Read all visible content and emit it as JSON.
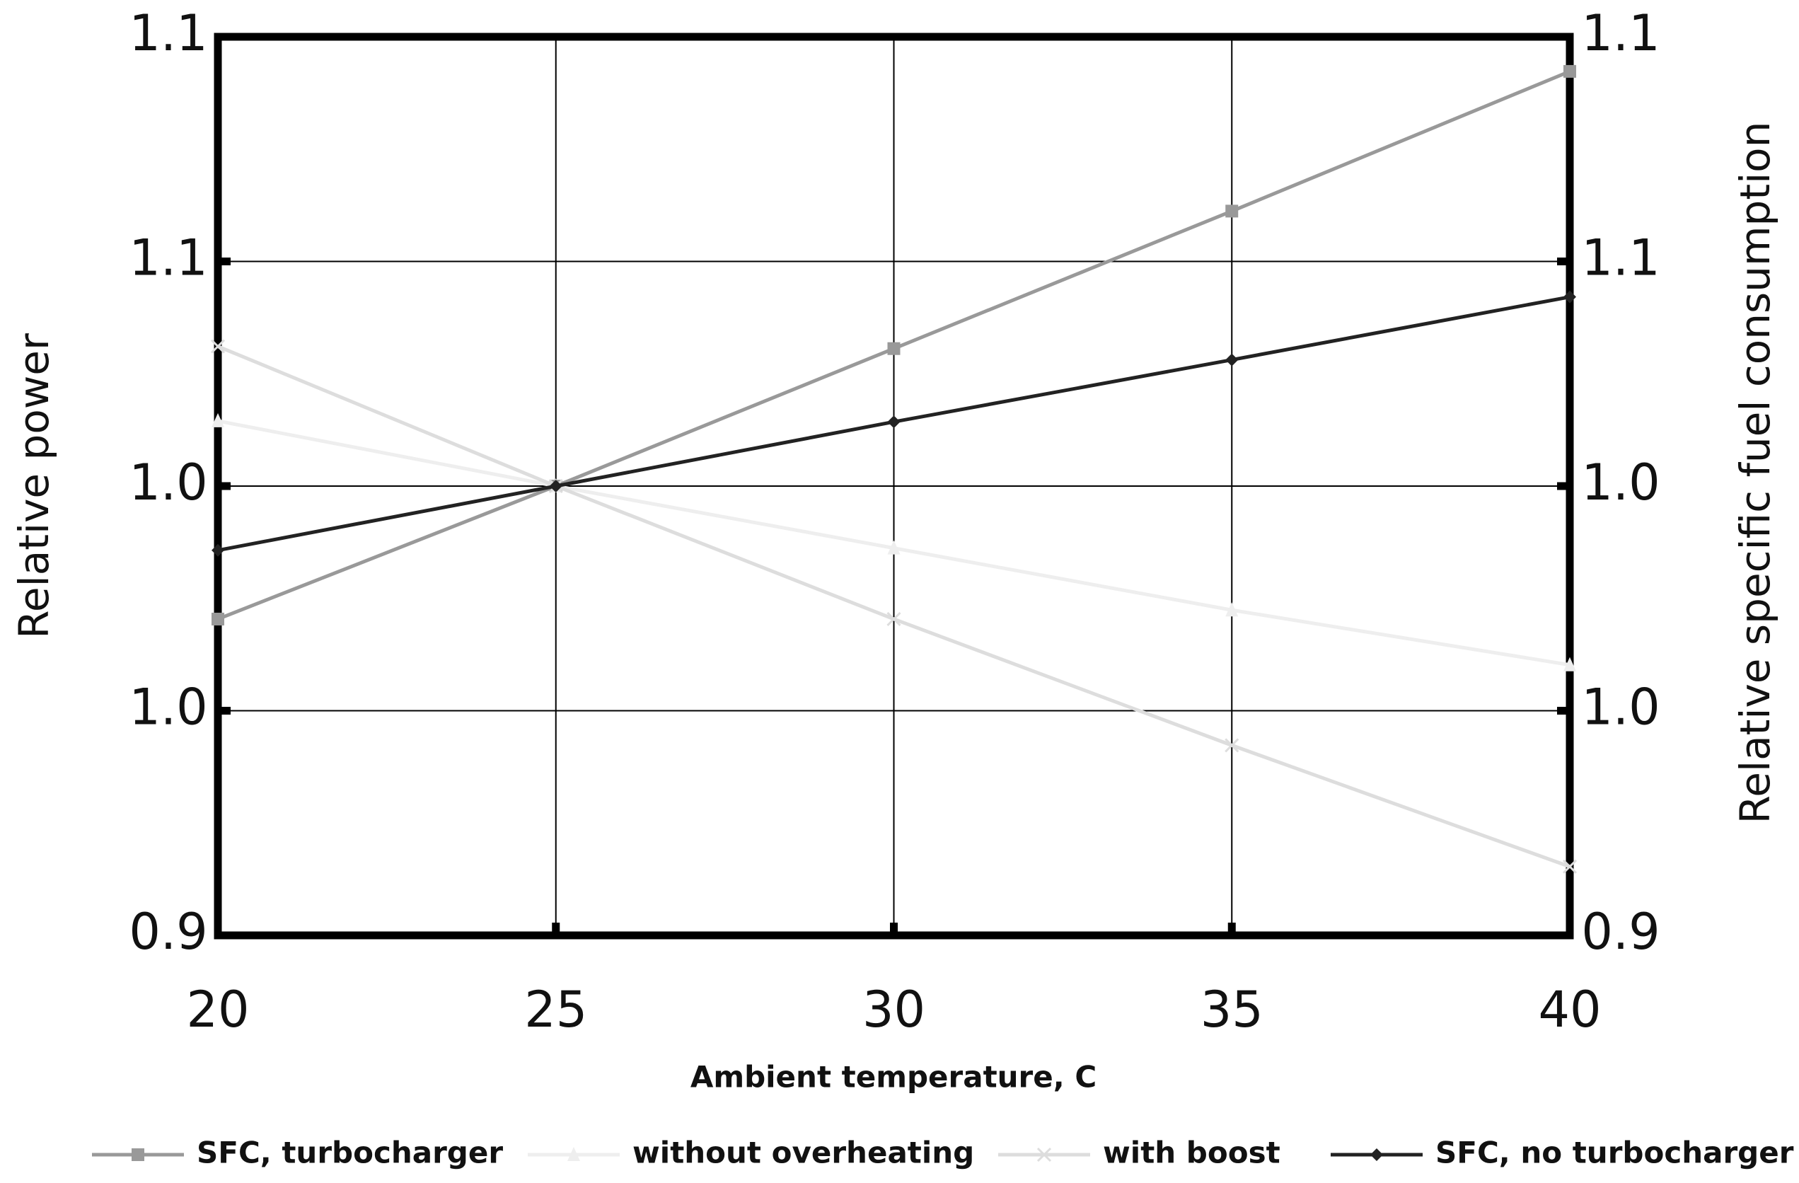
{
  "chart_data": {
    "type": "line",
    "x_label": "Ambient temperature, C",
    "y_label": "Relative power",
    "y2_label": "Relative specific fuel consumption",
    "x": [
      20,
      25,
      30,
      35,
      40
    ],
    "xlim": [
      20,
      40
    ],
    "xticks": [
      20,
      25,
      30,
      35,
      40
    ],
    "ylim": [
      0.9,
      1.1
    ],
    "yticks": [
      0.9,
      {
        "value": 0.95,
        "label": "1.0"
      },
      {
        "value": 1.0,
        "label": "1.0"
      },
      {
        "value": 1.05,
        "label": "1.1"
      },
      1.1
    ],
    "y2lim": [
      0.9,
      1.1
    ],
    "y2ticks": [
      0.9,
      {
        "value": 0.95,
        "label": "1.0"
      },
      {
        "value": 1.0,
        "label": "1.0"
      },
      {
        "value": 1.05,
        "label": "1.1"
      },
      1.1
    ],
    "grid": true,
    "legend": "bottom",
    "series": [
      {
        "name": "SFC, turbocharger",
        "color": "#999999",
        "marker": "square",
        "axis": "y2",
        "values": [
          0.9704,
          1.0,
          1.0306,
          1.0612,
          1.0923
        ]
      },
      {
        "name": "without overheating",
        "color": "#eeeeee",
        "marker": "triangle",
        "values": [
          1.0145,
          1.0,
          0.9862,
          0.9724,
          0.9602
        ]
      },
      {
        "name": "with boost",
        "color": "#dddddd",
        "marker": "cross",
        "values": [
          1.0311,
          1.0,
          0.9704,
          0.9423,
          0.9153
        ]
      },
      {
        "name": "SFC, no turbocharger",
        "color": "#222222",
        "marker": "diamond",
        "axis": "y2",
        "values": [
          0.9857,
          1.0,
          1.0143,
          1.0281,
          1.0421
        ]
      }
    ]
  }
}
